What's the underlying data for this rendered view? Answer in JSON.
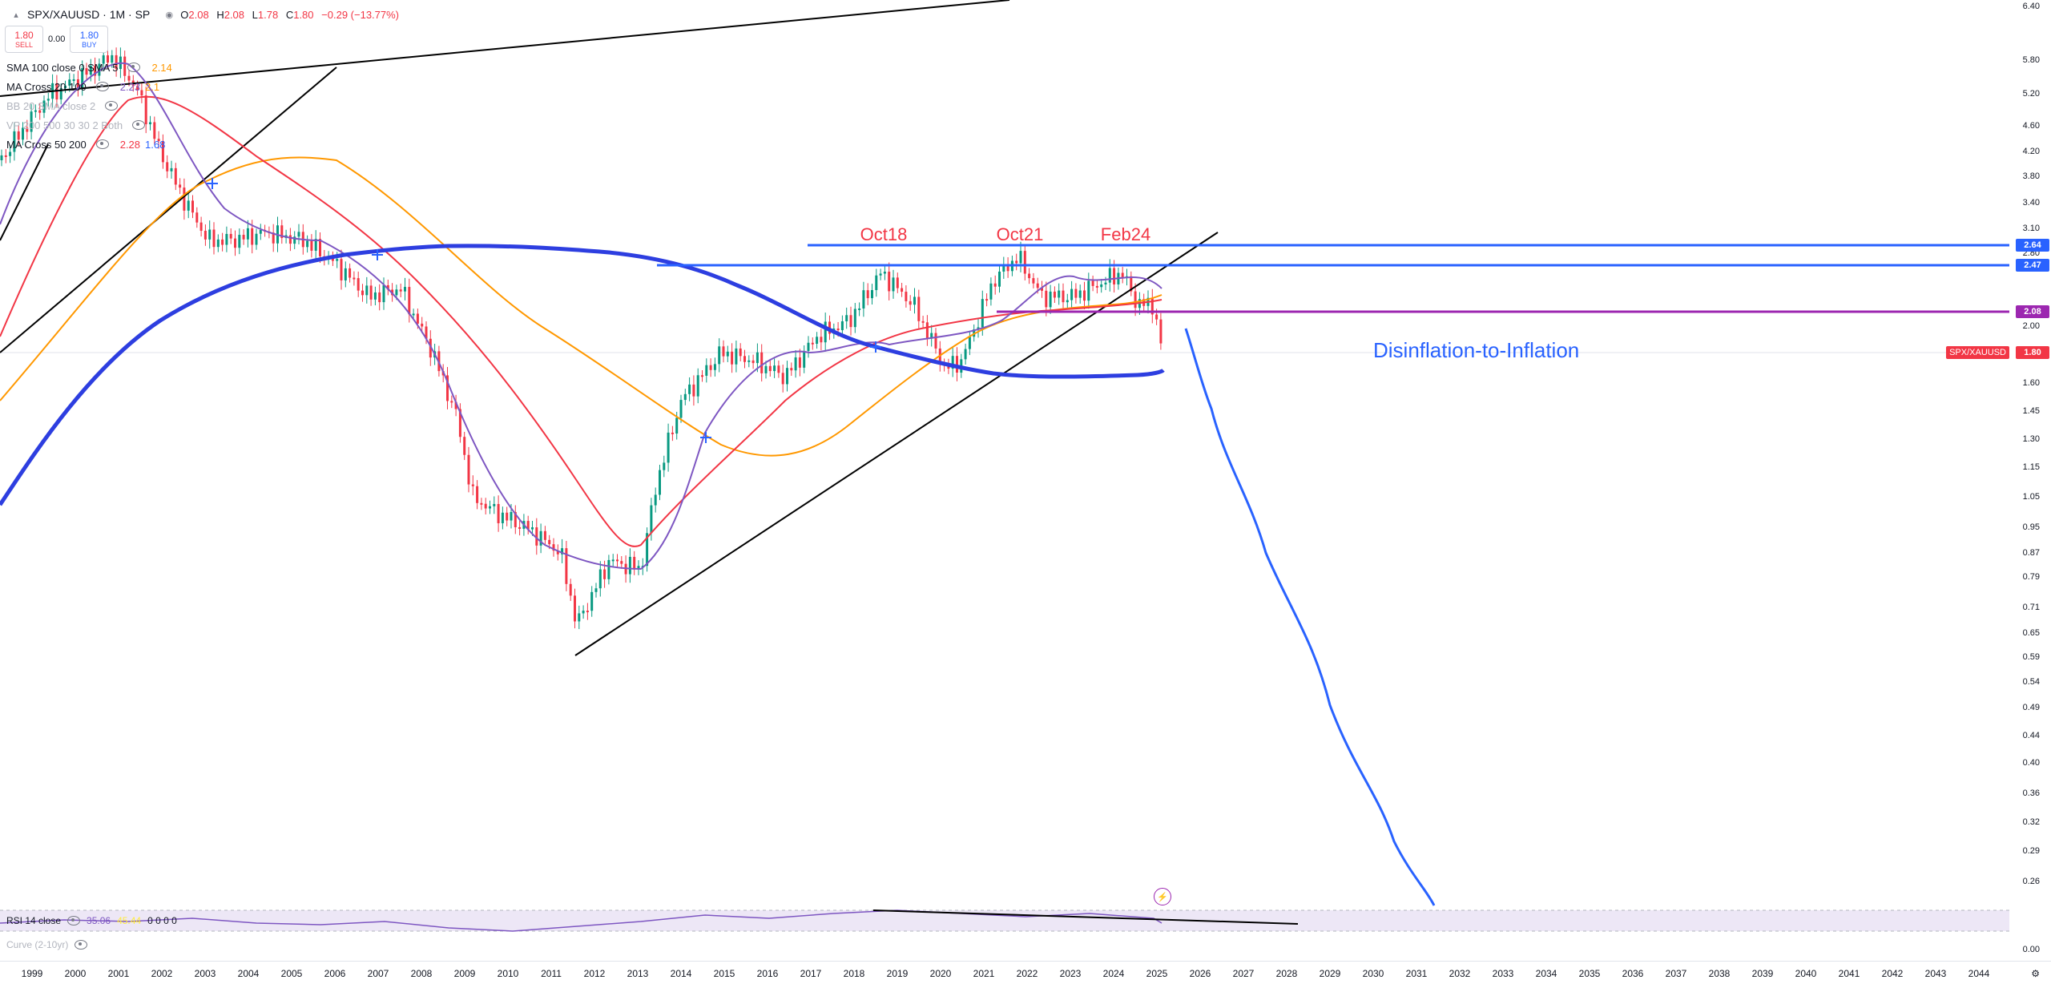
{
  "header": {
    "symbol_title": "SPX/XAUUSD · 1M · SP",
    "ohlc": {
      "o_label": "O",
      "o": "2.08",
      "h_label": "H",
      "h": "2.08",
      "l_label": "L",
      "l": "1.78",
      "c_label": "C",
      "c": "1.80",
      "chg": "−0.29 (−13.77%)"
    }
  },
  "trade": {
    "sell_price": "1.80",
    "sell_label": "SELL",
    "spread": "0.00",
    "buy_price": "1.80",
    "buy_label": "BUY"
  },
  "indicators": [
    {
      "name": "SMA 100 close 0 SMA 5",
      "values": [
        "2.14"
      ],
      "colors": [
        "#ff9800"
      ]
    },
    {
      "name": "MA Cross 20 100",
      "values": [
        "2.23",
        "2.1"
      ],
      "colors": [
        "#7e57c2",
        "#ff9800"
      ]
    },
    {
      "name": "BB 20 SMA close 2",
      "values": [],
      "colors": []
    },
    {
      "name": "VP 200 500 30 30 2 Both",
      "values": [],
      "colors": []
    },
    {
      "name": "MA Cross 50 200",
      "values": [
        "2.28",
        "1.68"
      ],
      "colors": [
        "#f23645",
        "#2962ff"
      ]
    }
  ],
  "price_ticks": [
    "6.40",
    "5.80",
    "5.20",
    "4.60",
    "4.20",
    "3.80",
    "3.40",
    "3.10",
    "2.80",
    "2.20",
    "2.00",
    "1.60",
    "1.45",
    "1.30",
    "1.15",
    "1.05",
    "0.95",
    "0.87",
    "0.79",
    "0.71",
    "0.65",
    "0.59",
    "0.54",
    "0.49",
    "0.44",
    "0.40",
    "0.36",
    "0.32",
    "0.29",
    "0.26",
    "0.00"
  ],
  "price_labels": [
    {
      "text": "2.64",
      "color": "#2962ff"
    },
    {
      "text": "2.47",
      "color": "#2962ff"
    },
    {
      "text": "2.08",
      "color": "#9c27b0"
    },
    {
      "text": "1.80",
      "color": "#f23645"
    }
  ],
  "symbol_tag": "SPX/XAUUSD",
  "time_ticks": [
    "1999",
    "2000",
    "2001",
    "2002",
    "2003",
    "2004",
    "2005",
    "2006",
    "2007",
    "2008",
    "2009",
    "2010",
    "2011",
    "2012",
    "2013",
    "2014",
    "2015",
    "2016",
    "2017",
    "2018",
    "2019",
    "2020",
    "2021",
    "2022",
    "2023",
    "2024",
    "2025",
    "2026",
    "2027",
    "2028",
    "2029",
    "2030",
    "2031",
    "2032",
    "2033",
    "2034",
    "2035",
    "2036",
    "2037",
    "2038",
    "2039",
    "2040",
    "2041",
    "2042",
    "2043",
    "2044"
  ],
  "annotations": {
    "peak1": "Oct18",
    "peak2": "Oct21",
    "peak3": "Feb24",
    "forecast": "Disinflation-to-Inflation"
  },
  "rsi": {
    "name": "RSI 14 close",
    "value1": "35.06",
    "value2": "45.44",
    "zeros": "0 0 0 0"
  },
  "curve": {
    "name": "Curve (2-10yr)"
  },
  "colors": {
    "down": "#f23645",
    "up": "#089981",
    "blue": "#2962ff",
    "purple": "#9c27b0",
    "orange": "#ff9800",
    "violet": "#7e57c2"
  }
}
